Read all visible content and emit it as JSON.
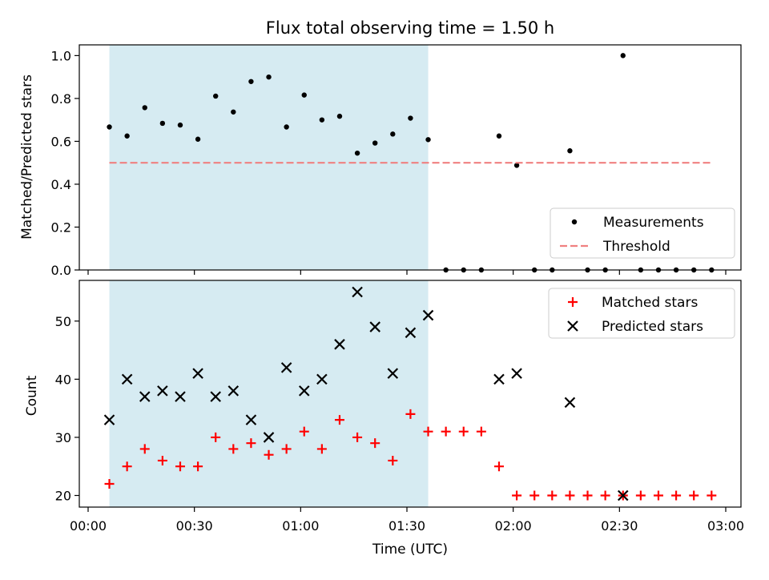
{
  "chart_data": [
    {
      "type": "scatter",
      "title": "Flux total observing time = 1.50 h",
      "ylabel": "Matched/Predicted stars",
      "xlabel": "",
      "xlim": [
        "00:00",
        "03:00"
      ],
      "ylim": [
        0,
        1.05
      ],
      "yticks": [
        "0.0",
        "0.2",
        "0.4",
        "0.6",
        "0.8",
        "1.0"
      ],
      "shaded_region": {
        "start": "00:06",
        "end": "01:36",
        "color": "#add8e6"
      },
      "legend_position": "lower right",
      "series": [
        {
          "name": "Measurements",
          "color": "#000000",
          "marker": "dot",
          "x": [
            "00:06",
            "00:11",
            "00:16",
            "00:21",
            "00:26",
            "00:31",
            "00:36",
            "00:41",
            "00:46",
            "00:51",
            "00:56",
            "01:01",
            "01:06",
            "01:11",
            "01:16",
            "01:21",
            "01:26",
            "01:31",
            "01:36",
            "01:41",
            "01:46",
            "01:51",
            "01:56",
            "02:01",
            "02:06",
            "02:11",
            "02:16",
            "02:21",
            "02:26",
            "02:31",
            "02:36",
            "02:41",
            "02:46",
            "02:51",
            "02:56"
          ],
          "y": [
            0.667,
            0.625,
            0.757,
            0.684,
            0.676,
            0.61,
            0.811,
            0.737,
            0.879,
            0.9,
            0.667,
            0.816,
            0.7,
            0.717,
            0.545,
            0.592,
            0.634,
            0.708,
            0.608,
            0,
            0,
            0,
            0.625,
            0.488,
            0,
            0,
            0.556,
            0,
            0,
            1.0,
            0,
            0,
            0,
            0,
            0
          ]
        },
        {
          "name": "Threshold",
          "color": "#f08080",
          "style": "dashed",
          "x": [
            "00:06",
            "02:56"
          ],
          "y": [
            0.5,
            0.5
          ]
        }
      ]
    },
    {
      "type": "scatter",
      "ylabel": "Count",
      "xlabel": "Time (UTC)",
      "xlim": [
        "00:00",
        "03:00"
      ],
      "ylim": [
        18,
        57
      ],
      "yticks": [
        "20",
        "30",
        "40",
        "50"
      ],
      "xticks": [
        "00:00",
        "00:30",
        "01:00",
        "01:30",
        "02:00",
        "02:30",
        "03:00"
      ],
      "shaded_region": {
        "start": "00:06",
        "end": "01:36",
        "color": "#add8e6"
      },
      "legend_position": "upper right",
      "series": [
        {
          "name": "Matched stars",
          "color": "#ff0000",
          "marker": "plus",
          "x": [
            "00:06",
            "00:11",
            "00:16",
            "00:21",
            "00:26",
            "00:31",
            "00:36",
            "00:41",
            "00:46",
            "00:51",
            "00:56",
            "01:01",
            "01:06",
            "01:11",
            "01:16",
            "01:21",
            "01:26",
            "01:31",
            "01:36",
            "01:41",
            "01:46",
            "01:51",
            "01:56",
            "02:01",
            "02:06",
            "02:11",
            "02:16",
            "02:21",
            "02:26",
            "02:31",
            "02:36",
            "02:41",
            "02:46",
            "02:51",
            "02:56"
          ],
          "y": [
            22,
            25,
            28,
            26,
            25,
            25,
            30,
            28,
            29,
            27,
            28,
            31,
            28,
            33,
            30,
            29,
            26,
            34,
            31,
            31,
            31,
            31,
            25,
            20,
            20,
            20,
            20,
            20,
            20,
            20,
            20,
            20,
            20,
            20,
            20
          ]
        },
        {
          "name": "Predicted stars",
          "color": "#000000",
          "marker": "x",
          "x": [
            "00:06",
            "00:11",
            "00:16",
            "00:21",
            "00:26",
            "00:31",
            "00:36",
            "00:41",
            "00:46",
            "00:51",
            "00:56",
            "01:01",
            "01:06",
            "01:11",
            "01:16",
            "01:21",
            "01:26",
            "01:31",
            "01:36",
            "01:56",
            "02:01",
            "02:16",
            "02:31"
          ],
          "y": [
            33,
            40,
            37,
            38,
            37,
            41,
            37,
            38,
            33,
            30,
            42,
            38,
            40,
            46,
            55,
            49,
            41,
            48,
            51,
            40,
            41,
            36,
            20
          ]
        }
      ]
    }
  ]
}
